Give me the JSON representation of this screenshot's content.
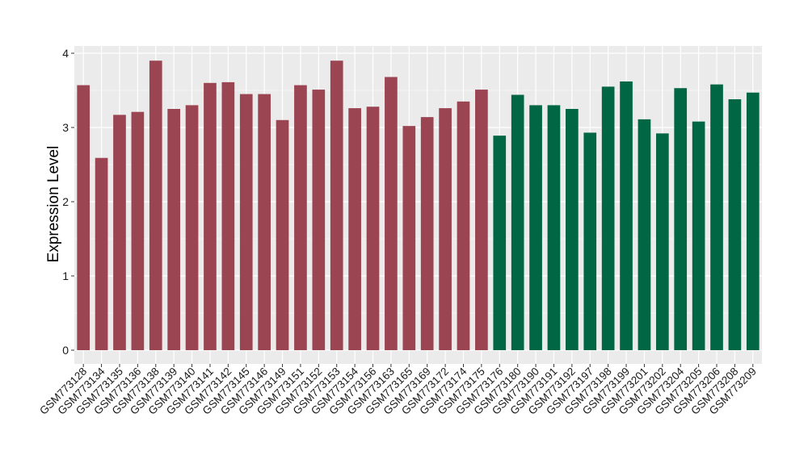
{
  "chart_data": {
    "type": "bar",
    "title": "",
    "xlabel": "",
    "ylabel": "Expression Level",
    "ylim": [
      0,
      4
    ],
    "yticks": [
      0,
      1,
      2,
      3,
      4
    ],
    "grid": true,
    "legend": "none",
    "categories": [
      "GSM773128",
      "GSM773134",
      "GSM773135",
      "GSM773136",
      "GSM773138",
      "GSM773139",
      "GSM773140",
      "GSM773141",
      "GSM773142",
      "GSM773145",
      "GSM773146",
      "GSM773149",
      "GSM773151",
      "GSM773152",
      "GSM773153",
      "GSM773154",
      "GSM773156",
      "GSM773163",
      "GSM773165",
      "GSM773169",
      "GSM773172",
      "GSM773174",
      "GSM773175",
      "GSM773176",
      "GSM773180",
      "GSM773190",
      "GSM773191",
      "GSM773192",
      "GSM773197",
      "GSM773198",
      "GSM773199",
      "GSM773201",
      "GSM773202",
      "GSM773204",
      "GSM773205",
      "GSM773206",
      "GSM773208",
      "GSM773209"
    ],
    "values": [
      3.57,
      2.59,
      3.17,
      3.21,
      3.9,
      3.25,
      3.3,
      3.6,
      3.61,
      3.45,
      3.45,
      3.1,
      3.57,
      3.51,
      3.9,
      3.26,
      3.28,
      3.68,
      3.02,
      3.14,
      3.26,
      3.35,
      3.51,
      2.89,
      3.44,
      3.3,
      3.3,
      3.25,
      2.93,
      3.55,
      3.62,
      3.11,
      2.92,
      3.53,
      3.08,
      3.58,
      3.38,
      3.47
    ],
    "groups": [
      "a",
      "a",
      "a",
      "a",
      "a",
      "a",
      "a",
      "a",
      "a",
      "a",
      "a",
      "a",
      "a",
      "a",
      "a",
      "a",
      "a",
      "a",
      "a",
      "a",
      "a",
      "a",
      "a",
      "b",
      "b",
      "b",
      "b",
      "b",
      "b",
      "b",
      "b",
      "b",
      "b",
      "b",
      "b",
      "b",
      "b",
      "b"
    ],
    "colors": {
      "a": "#9b4452",
      "b": "#006644"
    },
    "panel_background": "#ebebeb",
    "grid_color": "#ffffff"
  }
}
